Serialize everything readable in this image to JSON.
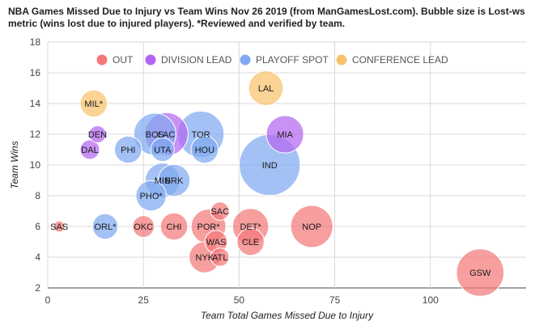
{
  "chart_data": {
    "type": "scatter",
    "title": "NBA Games Missed Due to Injury vs Team Wins Nov 26 2019 (from ManGamesLost.com). Bubble size is Lost-ws metric (wins lost due to injured players). *Reviewed and verified by team.",
    "xlabel": "Team Total Games Missed Due to Injury",
    "ylabel": "Team Wins",
    "xlim": [
      0,
      125
    ],
    "ylim": [
      2,
      18
    ],
    "x_ticks": [
      "0",
      "25",
      "50",
      "75",
      "100"
    ],
    "y_ticks": [
      "2",
      "4",
      "6",
      "8",
      "10",
      "12",
      "14",
      "16",
      "18"
    ],
    "grid": true,
    "legend_position": "top",
    "series": [
      {
        "name": "OUT",
        "color": "#f4787a",
        "points": [
          {
            "label": "SAS",
            "x": 3,
            "y": 6,
            "size": 0.4
          },
          {
            "label": "OKC",
            "x": 25,
            "y": 6,
            "size": 1.2
          },
          {
            "label": "CHI",
            "x": 33,
            "y": 6,
            "size": 1.8
          },
          {
            "label": "POR*",
            "x": 42,
            "y": 6,
            "size": 2.8
          },
          {
            "label": "SAC",
            "x": 45,
            "y": 7,
            "size": 0.9
          },
          {
            "label": "WAS",
            "x": 44,
            "y": 5,
            "size": 1.3
          },
          {
            "label": "NYK",
            "x": 41,
            "y": 4,
            "size": 2.3
          },
          {
            "label": "ATL",
            "x": 45,
            "y": 4,
            "size": 0.9
          },
          {
            "label": "DET*",
            "x": 53,
            "y": 6,
            "size": 3.0
          },
          {
            "label": "CLE",
            "x": 53,
            "y": 5,
            "size": 1.8
          },
          {
            "label": "NOP",
            "x": 69,
            "y": 6,
            "size": 4.0
          },
          {
            "label": "GSW",
            "x": 113,
            "y": 3,
            "size": 5.0
          }
        ]
      },
      {
        "name": "DIVISION LEAD",
        "color": "#b366f0",
        "points": [
          {
            "label": "DEN",
            "x": 13,
            "y": 12,
            "size": 0.8
          },
          {
            "label": "DAL",
            "x": 11,
            "y": 11,
            "size": 1.0
          },
          {
            "label": "LAC",
            "x": 31,
            "y": 12,
            "size": 4.2
          },
          {
            "label": "MIA",
            "x": 62,
            "y": 12,
            "size": 3.2
          }
        ]
      },
      {
        "name": "PLAYOFF SPOT",
        "color": "#7fa9f0",
        "points": [
          {
            "label": "ORL*",
            "x": 15,
            "y": 6,
            "size": 1.6
          },
          {
            "label": "PHI",
            "x": 21,
            "y": 11,
            "size": 1.8
          },
          {
            "label": "BOS",
            "x": 28,
            "y": 12,
            "size": 4.0
          },
          {
            "label": "UTA",
            "x": 30,
            "y": 11,
            "size": 1.4
          },
          {
            "label": "TOR",
            "x": 40,
            "y": 12,
            "size": 4.8
          },
          {
            "label": "HOU",
            "x": 41,
            "y": 11,
            "size": 1.8
          },
          {
            "label": "MIN",
            "x": 30,
            "y": 9,
            "size": 2.8
          },
          {
            "label": "BRK",
            "x": 33,
            "y": 9,
            "size": 2.4
          },
          {
            "label": "PHO*",
            "x": 27,
            "y": 8,
            "size": 2.2
          },
          {
            "label": "IND",
            "x": 58,
            "y": 10,
            "size": 8.0
          }
        ]
      },
      {
        "name": "CONFERENCE LEAD",
        "color": "#f8c26c",
        "points": [
          {
            "label": "MIL*",
            "x": 12,
            "y": 14,
            "size": 1.8
          },
          {
            "label": "LAL",
            "x": 57,
            "y": 15,
            "size": 2.8
          }
        ]
      }
    ]
  }
}
